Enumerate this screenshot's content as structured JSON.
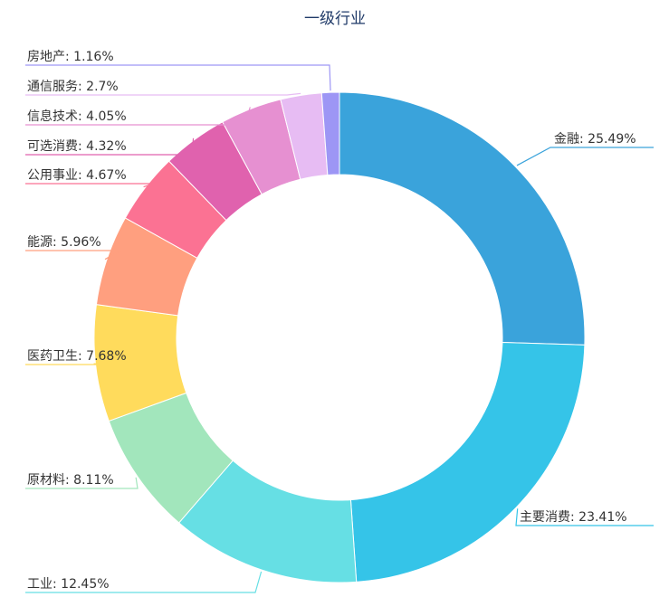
{
  "chart_data": {
    "type": "pie",
    "variant": "donut",
    "title": "一级行业",
    "label_separator": ": ",
    "value_suffix": "%",
    "legend": "none",
    "slices": [
      {
        "name": "金融",
        "value": 25.49,
        "color": "#3aa3db"
      },
      {
        "name": "主要消费",
        "value": 23.41,
        "color": "#35c4e8"
      },
      {
        "name": "工业",
        "value": 12.45,
        "color": "#66dfe4"
      },
      {
        "name": "原材料",
        "value": 8.11,
        "color": "#a2e6bc"
      },
      {
        "name": "医药卫生",
        "value": 7.68,
        "color": "#ffdb5c"
      },
      {
        "name": "能源",
        "value": 5.96,
        "color": "#ff9f7f"
      },
      {
        "name": "公用事业",
        "value": 4.67,
        "color": "#fb7293"
      },
      {
        "name": "可选消费",
        "value": 4.32,
        "color": "#e062ae"
      },
      {
        "name": "信息技术",
        "value": 4.05,
        "color": "#e690d1"
      },
      {
        "name": "通信服务",
        "value": 2.7,
        "color": "#e7bcf3"
      },
      {
        "name": "房地产",
        "value": 1.16,
        "color": "#9d96f5"
      }
    ]
  }
}
